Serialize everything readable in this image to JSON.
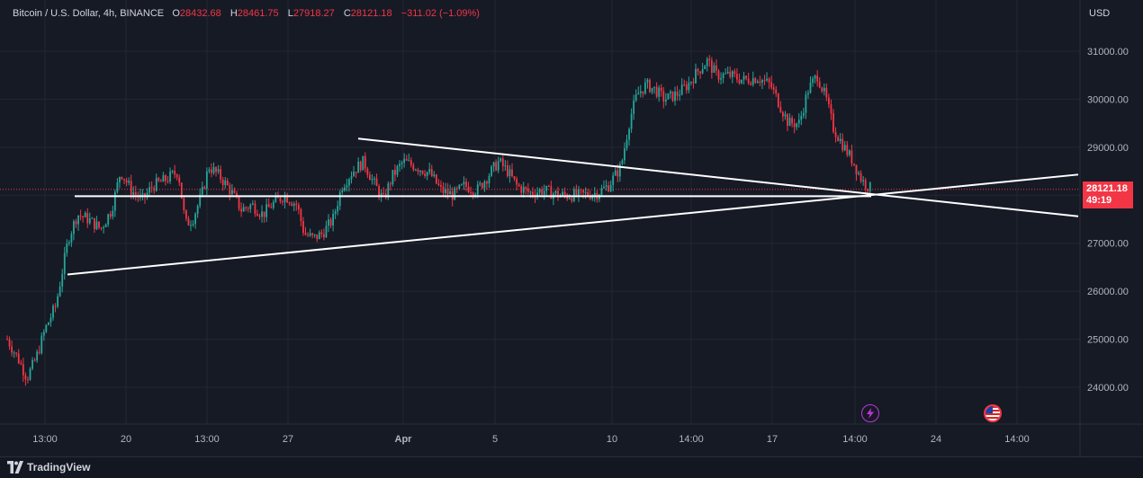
{
  "header": {
    "symbol": "Bitcoin / U.S. Dollar, 4h, BINANCE",
    "ohlc": [
      {
        "key": "O",
        "value": "28432.68"
      },
      {
        "key": "H",
        "value": "28461.75"
      },
      {
        "key": "L",
        "value": "27918.27"
      },
      {
        "key": "C",
        "value": "28121.18"
      }
    ],
    "change": "−311.02 (−1.09%)",
    "currency": "USD"
  },
  "price_tag": {
    "price": "28121.18",
    "countdown": "49:19"
  },
  "footer": {
    "brand": "TradingView"
  },
  "colors": {
    "up": "#26a69a",
    "down": "#f23645",
    "background": "#161a25",
    "grid": "#232734",
    "text": "#b2b5be",
    "line": "#ffffff"
  },
  "chart_data": {
    "type": "candlestick",
    "ylim": [
      23300,
      31700
    ],
    "x_range": [
      0,
      1200
    ],
    "y_ticks": [
      {
        "value": 24000,
        "label": "24000.00"
      },
      {
        "value": 25000,
        "label": "25000.00"
      },
      {
        "value": 26000,
        "label": "26000.00"
      },
      {
        "value": 27000,
        "label": "27000.00"
      },
      {
        "value": 28000,
        "label": "28000.00"
      },
      {
        "value": 29000,
        "label": "29000.00"
      },
      {
        "value": 30000,
        "label": "30000.00"
      },
      {
        "value": 31000,
        "label": "31000.00"
      }
    ],
    "x_ticks": [
      {
        "pos": 50,
        "label": "13:00",
        "bold": false
      },
      {
        "pos": 140,
        "label": "20",
        "bold": false
      },
      {
        "pos": 230,
        "label": "13:00",
        "bold": false
      },
      {
        "pos": 320,
        "label": "27",
        "bold": false
      },
      {
        "pos": 448,
        "label": "Apr",
        "bold": true
      },
      {
        "pos": 550,
        "label": "5",
        "bold": false
      },
      {
        "pos": 680,
        "label": "10",
        "bold": false
      },
      {
        "pos": 768,
        "label": "14:00",
        "bold": false
      },
      {
        "pos": 858,
        "label": "17",
        "bold": false
      },
      {
        "pos": 950,
        "label": "14:00",
        "bold": false
      },
      {
        "pos": 1040,
        "label": "24",
        "bold": false
      },
      {
        "pos": 1130,
        "label": "14:00",
        "bold": false
      }
    ],
    "last_price": 28121.18,
    "keypoints": [
      [
        8,
        25000
      ],
      [
        20,
        24600
      ],
      [
        30,
        24200
      ],
      [
        40,
        24600
      ],
      [
        50,
        25200
      ],
      [
        62,
        25700
      ],
      [
        70,
        26500
      ],
      [
        76,
        27100
      ],
      [
        86,
        27600
      ],
      [
        98,
        27500
      ],
      [
        112,
        27300
      ],
      [
        124,
        27700
      ],
      [
        134,
        28500
      ],
      [
        146,
        28100
      ],
      [
        158,
        27900
      ],
      [
        170,
        28200
      ],
      [
        182,
        28300
      ],
      [
        198,
        28500
      ],
      [
        206,
        27400
      ],
      [
        214,
        27500
      ],
      [
        224,
        28000
      ],
      [
        232,
        28600
      ],
      [
        244,
        28400
      ],
      [
        256,
        28100
      ],
      [
        268,
        27700
      ],
      [
        280,
        27800
      ],
      [
        292,
        27600
      ],
      [
        302,
        27800
      ],
      [
        316,
        28000
      ],
      [
        330,
        27800
      ],
      [
        338,
        27200
      ],
      [
        348,
        27100
      ],
      [
        358,
        27200
      ],
      [
        370,
        27500
      ],
      [
        380,
        28200
      ],
      [
        392,
        28500
      ],
      [
        404,
        28700
      ],
      [
        414,
        28300
      ],
      [
        426,
        27900
      ],
      [
        436,
        28400
      ],
      [
        448,
        28700
      ],
      [
        462,
        28600
      ],
      [
        478,
        28450
      ],
      [
        490,
        28100
      ],
      [
        504,
        28000
      ],
      [
        516,
        28200
      ],
      [
        530,
        28100
      ],
      [
        542,
        28400
      ],
      [
        554,
        28700
      ],
      [
        564,
        28500
      ],
      [
        574,
        28200
      ],
      [
        588,
        28050
      ],
      [
        604,
        28100
      ],
      [
        622,
        28000
      ],
      [
        644,
        28000
      ],
      [
        664,
        28050
      ],
      [
        676,
        28200
      ],
      [
        690,
        28600
      ],
      [
        700,
        29600
      ],
      [
        708,
        30100
      ],
      [
        718,
        30300
      ],
      [
        728,
        30200
      ],
      [
        738,
        30000
      ],
      [
        752,
        30100
      ],
      [
        764,
        30300
      ],
      [
        776,
        30600
      ],
      [
        786,
        30800
      ],
      [
        796,
        30500
      ],
      [
        810,
        30500
      ],
      [
        826,
        30400
      ],
      [
        842,
        30450
      ],
      [
        856,
        30300
      ],
      [
        866,
        29900
      ],
      [
        876,
        29500
      ],
      [
        888,
        29500
      ],
      [
        898,
        30200
      ],
      [
        908,
        30500
      ],
      [
        918,
        30000
      ],
      [
        926,
        29400
      ],
      [
        938,
        29000
      ],
      [
        948,
        28700
      ],
      [
        958,
        28300
      ],
      [
        968,
        28121
      ]
    ],
    "trendlines": [
      {
        "x1": 75,
        "y1": 26350,
        "x2": 1198,
        "y2": 28430
      },
      {
        "x1": 398,
        "y1": 29180,
        "x2": 1198,
        "y2": 27560
      },
      {
        "x1": 83,
        "y1": 27980,
        "x2": 968,
        "y2": 27980
      }
    ]
  }
}
